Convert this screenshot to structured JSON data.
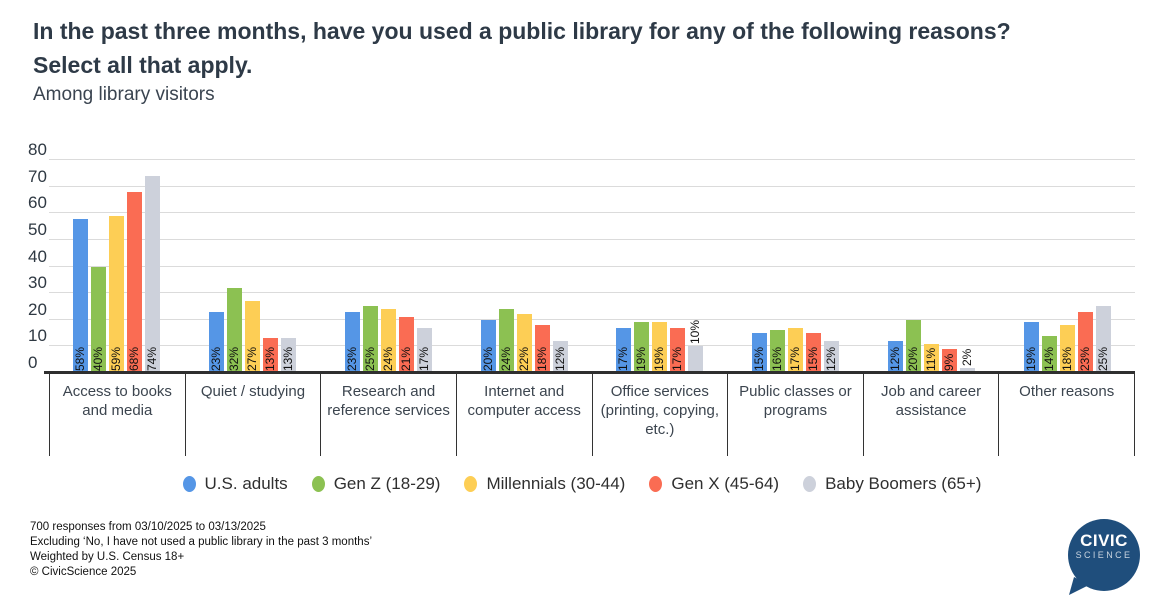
{
  "header": {
    "title_line1": "In the past three months, have you used a public library for any of the following reasons?",
    "title_line2": "Select all that apply.",
    "subtitle": "Among library visitors"
  },
  "chart_data": {
    "type": "bar",
    "title": "In the past three months, have you used a public library for any of the following reasons? Select all that apply.",
    "subtitle": "Among library visitors",
    "categories": [
      "Access to books and media",
      "Quiet / studying",
      "Research and reference services",
      "Internet and computer access",
      "Office services (printing, copying, etc.)",
      "Public classes or programs",
      "Job and career assistance",
      "Other reasons"
    ],
    "series": [
      {
        "name": "U.S. adults",
        "color": "#5596E6",
        "values": [
          58,
          23,
          23,
          20,
          17,
          15,
          12,
          19
        ]
      },
      {
        "name": "Gen Z (18-29)",
        "color": "#8CC152",
        "values": [
          40,
          32,
          25,
          24,
          19,
          16,
          20,
          14
        ]
      },
      {
        "name": "Millennials (30-44)",
        "color": "#FDCE55",
        "values": [
          59,
          27,
          24,
          22,
          19,
          17,
          11,
          18
        ]
      },
      {
        "name": "Gen X (45-64)",
        "color": "#FA6C53",
        "values": [
          68,
          13,
          21,
          18,
          17,
          15,
          9,
          23
        ]
      },
      {
        "name": "Baby Boomers (65+)",
        "color": "#CDD1DB",
        "values": [
          74,
          13,
          17,
          12,
          10,
          12,
          2,
          25
        ]
      }
    ],
    "ylim": [
      0,
      80
    ],
    "yticks": [
      0,
      10,
      20,
      30,
      40,
      50,
      60,
      70,
      80
    ],
    "grid": true,
    "legend_position": "bottom",
    "value_label_format": "{value}%"
  },
  "footer": {
    "lines": [
      "700 responses from 03/10/2025 to 03/13/2025",
      "Excluding ‘No, I have not used a public library in the past 3 months’",
      "Weighted by U.S. Census 18+",
      "© CivicScience 2025"
    ]
  },
  "logo": {
    "line1": "CIVIC",
    "line2": "SCIENCE",
    "color": "#1F4E7C"
  }
}
